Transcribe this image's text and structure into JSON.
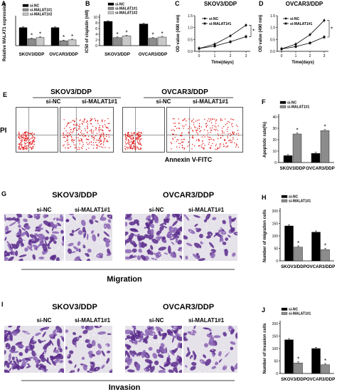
{
  "panels": {
    "A": {
      "letter": "A"
    },
    "B": {
      "letter": "B"
    },
    "C": {
      "letter": "C",
      "title": "SKOV3/DDP"
    },
    "D": {
      "letter": "D",
      "title": "OVCAR3/DDP"
    },
    "E": {
      "letter": "E",
      "cell_titles": [
        "SKOV3/DDP",
        "OVCAR3/DDP"
      ],
      "labels": [
        "si-NC",
        "si-MALAT1#1",
        "si-NC",
        "si-MALAT1#1"
      ],
      "xlabel": "Annexin V-FITC",
      "ylabel": "PI"
    },
    "F": {
      "letter": "F"
    },
    "G": {
      "letter": "G",
      "cell_titles": [
        "SKOV3/DDP",
        "OVCAR3/DDP"
      ],
      "labels": [
        "si-NC",
        "si-MALAT1#1",
        "si-NC",
        "si-MALAT1#1"
      ],
      "caption": "Migration"
    },
    "H": {
      "letter": "H"
    },
    "I": {
      "letter": "I",
      "cell_titles": [
        "SKOV3/DDP",
        "OVCAR3/DDP"
      ],
      "labels": [
        "si-NC",
        "si-MALAT1#1",
        "si-NC",
        "si-MALAT1#1"
      ],
      "caption": "Invasion"
    },
    "J": {
      "letter": "J"
    }
  },
  "chart_data": [
    {
      "id": "A",
      "type": "bar",
      "categories": [
        "SKOV3/DDP",
        "OVCAR3/DDP"
      ],
      "series": [
        {
          "name": "si-NC",
          "values": [
            1.0,
            1.0
          ],
          "color": "#000000"
        },
        {
          "name": "si-MALAT1#1",
          "values": [
            0.38,
            0.27
          ],
          "color": "#8c8c8c"
        },
        {
          "name": "si-MALAT1#2",
          "values": [
            0.45,
            0.32
          ],
          "color": "#c8c8c8"
        }
      ],
      "significant": [
        [
          false,
          true,
          true
        ],
        [
          false,
          true,
          true
        ]
      ],
      "ylabel": "Relative MALAT1 expression",
      "ylim": [
        0,
        1.5
      ],
      "yticks": []
    },
    {
      "id": "B",
      "type": "bar",
      "categories": [
        "SKOV3/DDP",
        "OVCAR3/DDP"
      ],
      "series": [
        {
          "name": "si-NC",
          "values": [
            8.5,
            7.6
          ],
          "color": "#000000"
        },
        {
          "name": "si-MALAT1#1",
          "values": [
            2.8,
            2.6
          ],
          "color": "#8c8c8c"
        },
        {
          "name": "si-MALAT1#2",
          "values": [
            3.4,
            3.0
          ],
          "color": "#c8c8c8"
        }
      ],
      "significant": [
        [
          false,
          true,
          true
        ],
        [
          false,
          true,
          true
        ]
      ],
      "ylabel": "IC50 of cisplatin (nM)",
      "ylim": [
        0,
        10
      ],
      "yticks": [
        0,
        2,
        4,
        6,
        8,
        10
      ]
    },
    {
      "id": "C",
      "type": "line",
      "x": [
        0,
        1,
        2,
        3
      ],
      "series": [
        {
          "name": "si-NC",
          "values": [
            0.12,
            0.3,
            0.65,
            1.1
          ],
          "marker": "circle"
        },
        {
          "name": "si-MALAT1#1",
          "values": [
            0.12,
            0.22,
            0.4,
            0.62
          ],
          "marker": "square"
        }
      ],
      "xlabel": "Time(days)",
      "ylabel": "OD value (490 nm)",
      "xticks": [
        0,
        1,
        2,
        3
      ],
      "yticks": [
        0.0,
        0.5,
        1.0,
        1.5
      ],
      "ylim": [
        0,
        1.5
      ],
      "significance": "*"
    },
    {
      "id": "D",
      "type": "line",
      "x": [
        0,
        1,
        2,
        3
      ],
      "series": [
        {
          "name": "si-NC",
          "values": [
            0.1,
            0.3,
            0.7,
            1.3
          ],
          "marker": "circle"
        },
        {
          "name": "si-MALAT1#1",
          "values": [
            0.1,
            0.2,
            0.35,
            0.6
          ],
          "marker": "square"
        }
      ],
      "xlabel": "Time(days)",
      "ylabel": "OD value (490 nm)",
      "xticks": [
        0,
        1,
        2,
        3
      ],
      "yticks": [
        0.0,
        0.5,
        1.0,
        1.5
      ],
      "ylim": [
        0,
        1.5
      ],
      "significance": "*"
    },
    {
      "id": "F",
      "type": "bar",
      "categories": [
        "SKOV3/DDP",
        "OVCAR3/DDP"
      ],
      "series": [
        {
          "name": "si-NC",
          "values": [
            6,
            8
          ],
          "color": "#000000"
        },
        {
          "name": "si-MALAT1#1",
          "values": [
            25,
            28
          ],
          "color": "#8c8c8c"
        }
      ],
      "significant": [
        [
          false,
          true
        ],
        [
          false,
          true
        ]
      ],
      "ylabel": "Apoptotic rate(%)",
      "ylim": [
        0,
        40
      ],
      "yticks": [
        0,
        10,
        20,
        30,
        40
      ]
    },
    {
      "id": "H",
      "type": "bar",
      "categories": [
        "SKOV3/DDP",
        "OVCAR3/DDP"
      ],
      "series": [
        {
          "name": "si-NC",
          "values": [
            140,
            115
          ],
          "color": "#000000"
        },
        {
          "name": "si-MALAT1#1",
          "values": [
            55,
            45
          ],
          "color": "#8c8c8c"
        }
      ],
      "significant": [
        [
          false,
          true
        ],
        [
          false,
          true
        ]
      ],
      "ylabel": "Number of migration cells",
      "ylim": [
        0,
        200
      ],
      "yticks": [
        0,
        50,
        100,
        150,
        200
      ]
    },
    {
      "id": "J",
      "type": "bar",
      "categories": [
        "SKOV3/DDP",
        "OVCAR3/DDP"
      ],
      "series": [
        {
          "name": "si-NC",
          "values": [
            135,
            100
          ],
          "color": "#000000"
        },
        {
          "name": "si-MALAT1#1",
          "values": [
            42,
            35
          ],
          "color": "#8c8c8c"
        }
      ],
      "significant": [
        [
          false,
          true
        ],
        [
          false,
          true
        ]
      ],
      "ylabel": "Number of invasion cells",
      "ylim": [
        0,
        200
      ],
      "yticks": [
        0,
        50,
        100,
        150,
        200
      ]
    }
  ]
}
